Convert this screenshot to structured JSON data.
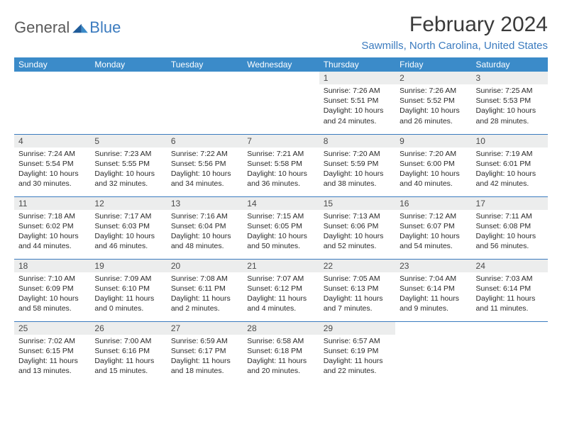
{
  "logo": {
    "part1": "General",
    "part2": "Blue"
  },
  "title": "February 2024",
  "location": "Sawmills, North Carolina, United States",
  "colors": {
    "header_bg": "#3b8bc9",
    "header_text": "#ffffff",
    "accent": "#3b7bbf",
    "daynum_bg": "#eceded",
    "body_text": "#2a2a2a",
    "title_text": "#3a3a3a",
    "logo_blue": "#3b7bbf",
    "logo_grey": "#5a5a5a"
  },
  "day_headers": [
    "Sunday",
    "Monday",
    "Tuesday",
    "Wednesday",
    "Thursday",
    "Friday",
    "Saturday"
  ],
  "weeks": [
    [
      null,
      null,
      null,
      null,
      {
        "n": "1",
        "sr": "Sunrise: 7:26 AM",
        "ss": "Sunset: 5:51 PM",
        "d1": "Daylight: 10 hours",
        "d2": "and 24 minutes."
      },
      {
        "n": "2",
        "sr": "Sunrise: 7:26 AM",
        "ss": "Sunset: 5:52 PM",
        "d1": "Daylight: 10 hours",
        "d2": "and 26 minutes."
      },
      {
        "n": "3",
        "sr": "Sunrise: 7:25 AM",
        "ss": "Sunset: 5:53 PM",
        "d1": "Daylight: 10 hours",
        "d2": "and 28 minutes."
      }
    ],
    [
      {
        "n": "4",
        "sr": "Sunrise: 7:24 AM",
        "ss": "Sunset: 5:54 PM",
        "d1": "Daylight: 10 hours",
        "d2": "and 30 minutes."
      },
      {
        "n": "5",
        "sr": "Sunrise: 7:23 AM",
        "ss": "Sunset: 5:55 PM",
        "d1": "Daylight: 10 hours",
        "d2": "and 32 minutes."
      },
      {
        "n": "6",
        "sr": "Sunrise: 7:22 AM",
        "ss": "Sunset: 5:56 PM",
        "d1": "Daylight: 10 hours",
        "d2": "and 34 minutes."
      },
      {
        "n": "7",
        "sr": "Sunrise: 7:21 AM",
        "ss": "Sunset: 5:58 PM",
        "d1": "Daylight: 10 hours",
        "d2": "and 36 minutes."
      },
      {
        "n": "8",
        "sr": "Sunrise: 7:20 AM",
        "ss": "Sunset: 5:59 PM",
        "d1": "Daylight: 10 hours",
        "d2": "and 38 minutes."
      },
      {
        "n": "9",
        "sr": "Sunrise: 7:20 AM",
        "ss": "Sunset: 6:00 PM",
        "d1": "Daylight: 10 hours",
        "d2": "and 40 minutes."
      },
      {
        "n": "10",
        "sr": "Sunrise: 7:19 AM",
        "ss": "Sunset: 6:01 PM",
        "d1": "Daylight: 10 hours",
        "d2": "and 42 minutes."
      }
    ],
    [
      {
        "n": "11",
        "sr": "Sunrise: 7:18 AM",
        "ss": "Sunset: 6:02 PM",
        "d1": "Daylight: 10 hours",
        "d2": "and 44 minutes."
      },
      {
        "n": "12",
        "sr": "Sunrise: 7:17 AM",
        "ss": "Sunset: 6:03 PM",
        "d1": "Daylight: 10 hours",
        "d2": "and 46 minutes."
      },
      {
        "n": "13",
        "sr": "Sunrise: 7:16 AM",
        "ss": "Sunset: 6:04 PM",
        "d1": "Daylight: 10 hours",
        "d2": "and 48 minutes."
      },
      {
        "n": "14",
        "sr": "Sunrise: 7:15 AM",
        "ss": "Sunset: 6:05 PM",
        "d1": "Daylight: 10 hours",
        "d2": "and 50 minutes."
      },
      {
        "n": "15",
        "sr": "Sunrise: 7:13 AM",
        "ss": "Sunset: 6:06 PM",
        "d1": "Daylight: 10 hours",
        "d2": "and 52 minutes."
      },
      {
        "n": "16",
        "sr": "Sunrise: 7:12 AM",
        "ss": "Sunset: 6:07 PM",
        "d1": "Daylight: 10 hours",
        "d2": "and 54 minutes."
      },
      {
        "n": "17",
        "sr": "Sunrise: 7:11 AM",
        "ss": "Sunset: 6:08 PM",
        "d1": "Daylight: 10 hours",
        "d2": "and 56 minutes."
      }
    ],
    [
      {
        "n": "18",
        "sr": "Sunrise: 7:10 AM",
        "ss": "Sunset: 6:09 PM",
        "d1": "Daylight: 10 hours",
        "d2": "and 58 minutes."
      },
      {
        "n": "19",
        "sr": "Sunrise: 7:09 AM",
        "ss": "Sunset: 6:10 PM",
        "d1": "Daylight: 11 hours",
        "d2": "and 0 minutes."
      },
      {
        "n": "20",
        "sr": "Sunrise: 7:08 AM",
        "ss": "Sunset: 6:11 PM",
        "d1": "Daylight: 11 hours",
        "d2": "and 2 minutes."
      },
      {
        "n": "21",
        "sr": "Sunrise: 7:07 AM",
        "ss": "Sunset: 6:12 PM",
        "d1": "Daylight: 11 hours",
        "d2": "and 4 minutes."
      },
      {
        "n": "22",
        "sr": "Sunrise: 7:05 AM",
        "ss": "Sunset: 6:13 PM",
        "d1": "Daylight: 11 hours",
        "d2": "and 7 minutes."
      },
      {
        "n": "23",
        "sr": "Sunrise: 7:04 AM",
        "ss": "Sunset: 6:14 PM",
        "d1": "Daylight: 11 hours",
        "d2": "and 9 minutes."
      },
      {
        "n": "24",
        "sr": "Sunrise: 7:03 AM",
        "ss": "Sunset: 6:14 PM",
        "d1": "Daylight: 11 hours",
        "d2": "and 11 minutes."
      }
    ],
    [
      {
        "n": "25",
        "sr": "Sunrise: 7:02 AM",
        "ss": "Sunset: 6:15 PM",
        "d1": "Daylight: 11 hours",
        "d2": "and 13 minutes."
      },
      {
        "n": "26",
        "sr": "Sunrise: 7:00 AM",
        "ss": "Sunset: 6:16 PM",
        "d1": "Daylight: 11 hours",
        "d2": "and 15 minutes."
      },
      {
        "n": "27",
        "sr": "Sunrise: 6:59 AM",
        "ss": "Sunset: 6:17 PM",
        "d1": "Daylight: 11 hours",
        "d2": "and 18 minutes."
      },
      {
        "n": "28",
        "sr": "Sunrise: 6:58 AM",
        "ss": "Sunset: 6:18 PM",
        "d1": "Daylight: 11 hours",
        "d2": "and 20 minutes."
      },
      {
        "n": "29",
        "sr": "Sunrise: 6:57 AM",
        "ss": "Sunset: 6:19 PM",
        "d1": "Daylight: 11 hours",
        "d2": "and 22 minutes."
      },
      null,
      null
    ]
  ]
}
